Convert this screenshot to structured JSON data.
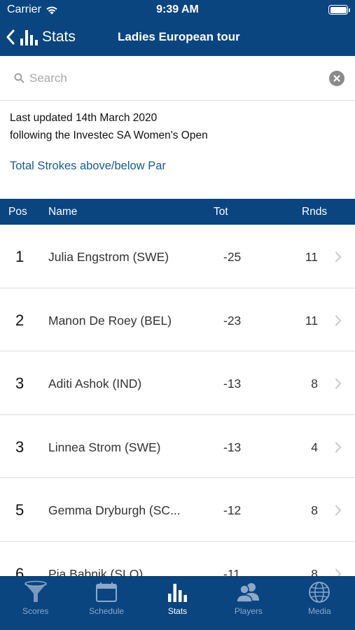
{
  "status_bar": {
    "carrier": "Carrier",
    "time": "9:39 AM"
  },
  "nav": {
    "back_label": "Stats",
    "title": "Ladies European tour"
  },
  "search": {
    "placeholder": "Search",
    "value": ""
  },
  "info": {
    "line1": "Last updated 14th March 2020",
    "line2": "following the Investec SA Women's Open"
  },
  "stat_title": "Total Strokes above/below Par",
  "table": {
    "headers": {
      "pos": "Pos",
      "name": "Name",
      "tot": "Tot",
      "rnds": "Rnds"
    },
    "rows": [
      {
        "pos": "1",
        "name": "Julia Engstrom (SWE)",
        "tot": "-25",
        "rnds": "11"
      },
      {
        "pos": "2",
        "name": "Manon De Roey (BEL)",
        "tot": "-23",
        "rnds": "11"
      },
      {
        "pos": "3",
        "name": "Aditi Ashok (IND)",
        "tot": "-13",
        "rnds": "8"
      },
      {
        "pos": "3",
        "name": "Linnea Strom (SWE)",
        "tot": "-13",
        "rnds": "4"
      },
      {
        "pos": "5",
        "name": "Gemma Dryburgh (SC...",
        "tot": "-12",
        "rnds": "8"
      },
      {
        "pos": "6",
        "name": "Pia Babnik (SLO)",
        "tot": "-11",
        "rnds": "8"
      }
    ]
  },
  "tabs": [
    {
      "label": "Scores",
      "icon": "funnel-icon",
      "active": false
    },
    {
      "label": "Schedule",
      "icon": "calendar-icon",
      "active": false
    },
    {
      "label": "Stats",
      "icon": "bar-chart-icon",
      "active": true
    },
    {
      "label": "Players",
      "icon": "players-icon",
      "active": false
    },
    {
      "label": "Media",
      "icon": "globe-icon",
      "active": false
    }
  ],
  "colors": {
    "brand_blue": "#0a4580",
    "link_blue": "#1a5a92",
    "tab_inactive": "#8da8c8",
    "tab_active": "#ffffff"
  }
}
